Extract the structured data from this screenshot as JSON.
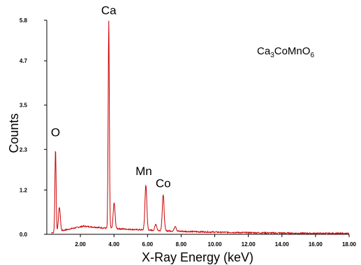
{
  "chart_data": {
    "type": "line",
    "title": "",
    "xlabel": "X-Ray Energy (keV)",
    "ylabel": "Counts",
    "xlim": [
      0,
      18
    ],
    "ylim": [
      0,
      5.8
    ],
    "x_ticks": [
      2,
      4,
      6,
      8,
      10,
      12,
      14,
      16,
      18
    ],
    "x_tick_labels": [
      "2.00",
      "4.00",
      "6.00",
      "8.00",
      "10.00",
      "12.00",
      "14.00",
      "16.00",
      "18.00"
    ],
    "y_ticks": [
      0,
      1.2,
      2.3,
      3.5,
      4.7,
      5.8
    ],
    "y_tick_labels": [
      "0.0",
      "1.2",
      "2.3",
      "3.5",
      "4.7",
      "5.8"
    ],
    "line_color": "#cc0000",
    "grid": false,
    "annotation": {
      "base": "Ca",
      "sub1": "3",
      "mid": "CoMnO",
      "sub2": "6"
    },
    "peaks": [
      {
        "label": "O",
        "x": 0.52,
        "y": 2.35
      },
      {
        "label": "Ca",
        "x": 3.69,
        "y": 5.7
      },
      {
        "label": "Mn",
        "x": 5.9,
        "y": 1.3
      },
      {
        "label": "Co",
        "x": 6.93,
        "y": 1.05
      }
    ],
    "minor_peaks": [
      {
        "x": 0.75,
        "y": 0.68
      },
      {
        "x": 4.01,
        "y": 0.72
      },
      {
        "x": 6.49,
        "y": 0.2
      },
      {
        "x": 7.65,
        "y": 0.17
      }
    ]
  }
}
